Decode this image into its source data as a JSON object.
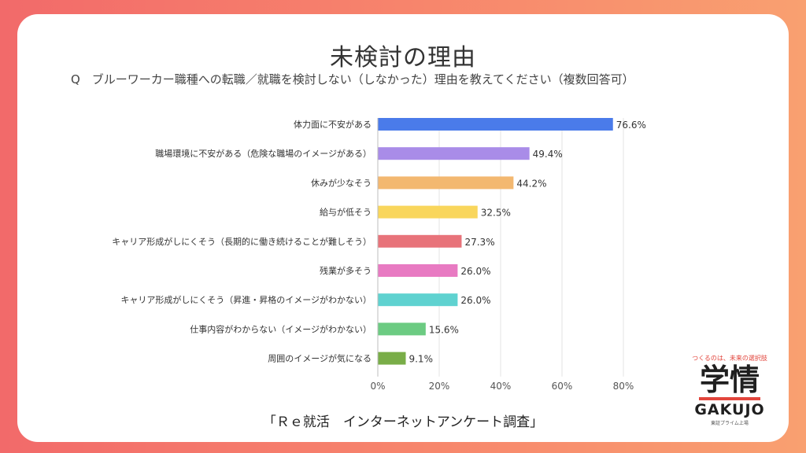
{
  "title": "未検討の理由",
  "question": "Q　ブルーワーカー職種への転職／就職を検討しない（しなかった）理由を教えてください（複数回答可）",
  "source": "「Ｒｅ就活　インターネットアンケート調査」",
  "logo": {
    "tagline": "つくるのは、未来の選択肢",
    "kanji": "学情",
    "wordmark": "GAKUJO",
    "subline": "東証プライム上場"
  },
  "chart_data": {
    "type": "bar",
    "orientation": "horizontal",
    "categories": [
      "体力面に不安がある",
      "職場環境に不安がある（危険な職場のイメージがある）",
      "休みが少なそう",
      "給与が低そう",
      "キャリア形成がしにくそう（長期的に働き続けることが難しそう）",
      "残業が多そう",
      "キャリア形成がしにくそう（昇進・昇格のイメージがわかない）",
      "仕事内容がわからない（イメージがわかない）",
      "周囲のイメージが気になる"
    ],
    "values": [
      76.6,
      49.4,
      44.2,
      32.5,
      27.3,
      26.0,
      26.0,
      15.6,
      9.1
    ],
    "value_labels": [
      "76.6%",
      "49.4%",
      "44.2%",
      "32.5%",
      "27.3%",
      "26.0%",
      "26.0%",
      "15.6%",
      "9.1%"
    ],
    "colors": [
      "#4a7bea",
      "#a98ce8",
      "#f3b870",
      "#f9d65c",
      "#e8737a",
      "#e87ac2",
      "#5fd2d0",
      "#6ccb82",
      "#79ad48"
    ],
    "xlim": [
      0,
      80
    ],
    "xticks": [
      "0%",
      "20%",
      "40%",
      "60%",
      "80%"
    ],
    "grid": true
  }
}
